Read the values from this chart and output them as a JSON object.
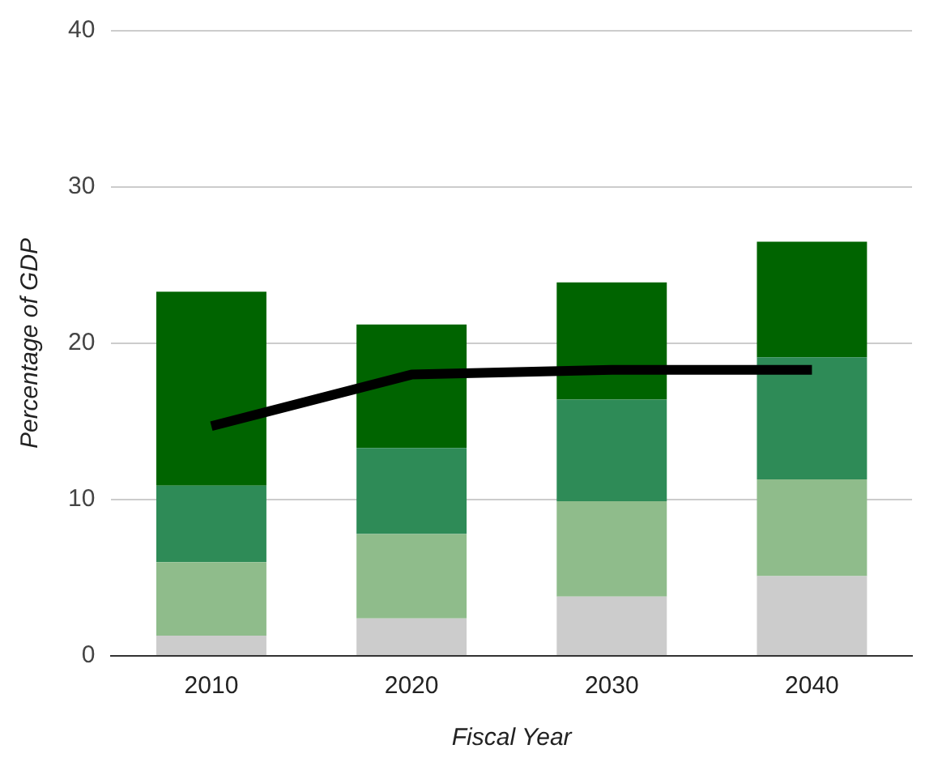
{
  "chart_data": {
    "type": "bar",
    "stacked": true,
    "xlabel": "Fiscal Year",
    "ylabel": "Percentage of GDP",
    "categories": [
      "2010",
      "2020",
      "2030",
      "2040"
    ],
    "series": [
      {
        "color": "#cccccc",
        "values": [
          1.3,
          2.4,
          3.8,
          5.1
        ]
      },
      {
        "color": "#8fbc8b",
        "values": [
          4.7,
          5.4,
          6.1,
          6.2
        ]
      },
      {
        "color": "#2e8b57",
        "values": [
          4.9,
          5.5,
          6.5,
          7.8
        ]
      },
      {
        "color": "#006400",
        "values": [
          12.4,
          7.9,
          7.5,
          7.4
        ]
      },
      {
        "type": "line",
        "color": "#000000",
        "values": [
          14.7,
          18.0,
          18.3,
          18.3
        ]
      }
    ],
    "ylim": [
      0,
      40
    ],
    "yticks": [
      0,
      10,
      20,
      30,
      40
    ],
    "grid": "y",
    "legend": false,
    "marker": "none",
    "line_style": "solid"
  }
}
